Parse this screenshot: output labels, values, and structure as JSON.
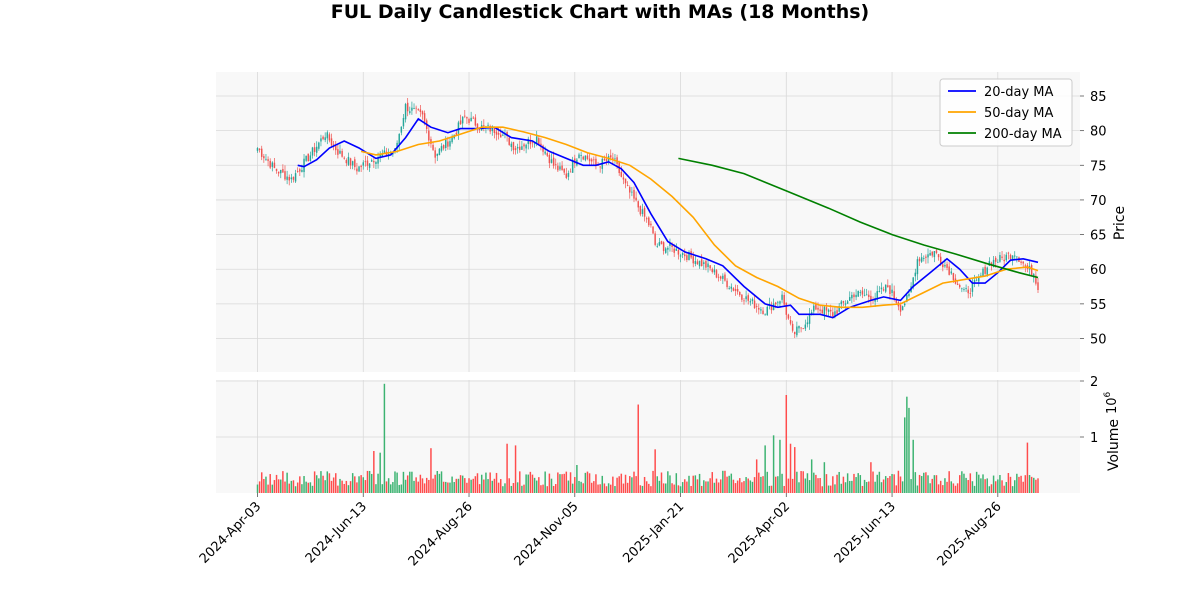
{
  "chart_data": {
    "type": "candlestick",
    "title": "FUL Daily Candlestick Chart with MAs (18 Months)",
    "price_panel": {
      "ylabel": "Price",
      "ylim": [
        46,
        88
      ],
      "yticks": [
        50,
        55,
        60,
        65,
        70,
        75,
        80,
        85
      ],
      "grid": true,
      "legend_position": "top-right"
    },
    "volume_panel": {
      "ylabel": "Volume",
      "scale_note": "10^6",
      "ylim": [
        0,
        2.0
      ],
      "yticks": [
        1,
        2
      ]
    },
    "x_axis": {
      "ticks": [
        "2024-Apr-03",
        "2024-Jun-13",
        "2024-Aug-26",
        "2024-Nov-05",
        "2025-Jan-21",
        "2025-Apr-02",
        "2025-Jun-13",
        "2025-Aug-26"
      ],
      "tick_index": [
        0,
        50,
        100,
        150,
        200,
        250,
        300,
        350
      ],
      "last_index": 369
    },
    "close_anchors": [
      {
        "i": 0,
        "v": 77.5
      },
      {
        "i": 8,
        "v": 74.5
      },
      {
        "i": 16,
        "v": 73.0
      },
      {
        "i": 25,
        "v": 76.5
      },
      {
        "i": 32,
        "v": 79.5
      },
      {
        "i": 38,
        "v": 77.0
      },
      {
        "i": 47,
        "v": 74.5
      },
      {
        "i": 55,
        "v": 76.0
      },
      {
        "i": 65,
        "v": 77.0
      },
      {
        "i": 70,
        "v": 83.5
      },
      {
        "i": 78,
        "v": 82.0
      },
      {
        "i": 84,
        "v": 76.5
      },
      {
        "i": 92,
        "v": 79.0
      },
      {
        "i": 98,
        "v": 82.0
      },
      {
        "i": 106,
        "v": 80.5
      },
      {
        "i": 114,
        "v": 80.0
      },
      {
        "i": 122,
        "v": 77.5
      },
      {
        "i": 132,
        "v": 79.0
      },
      {
        "i": 140,
        "v": 75.0
      },
      {
        "i": 146,
        "v": 73.5
      },
      {
        "i": 152,
        "v": 77.0
      },
      {
        "i": 160,
        "v": 75.0
      },
      {
        "i": 168,
        "v": 76.0
      },
      {
        "i": 174,
        "v": 72.0
      },
      {
        "i": 180,
        "v": 69.0
      },
      {
        "i": 186,
        "v": 66.0
      },
      {
        "i": 188,
        "v": 63.5
      },
      {
        "i": 196,
        "v": 63.0
      },
      {
        "i": 203,
        "v": 62.0
      },
      {
        "i": 212,
        "v": 60.5
      },
      {
        "i": 222,
        "v": 58.0
      },
      {
        "i": 232,
        "v": 55.5
      },
      {
        "i": 240,
        "v": 54.0
      },
      {
        "i": 248,
        "v": 56.0
      },
      {
        "i": 253,
        "v": 50.5
      },
      {
        "i": 258,
        "v": 52.0
      },
      {
        "i": 264,
        "v": 54.5
      },
      {
        "i": 272,
        "v": 53.5
      },
      {
        "i": 282,
        "v": 56.5
      },
      {
        "i": 292,
        "v": 56.0
      },
      {
        "i": 298,
        "v": 57.5
      },
      {
        "i": 304,
        "v": 54.5
      },
      {
        "i": 308,
        "v": 56.0
      },
      {
        "i": 312,
        "v": 61.5
      },
      {
        "i": 320,
        "v": 62.5
      },
      {
        "i": 328,
        "v": 59.5
      },
      {
        "i": 334,
        "v": 56.5
      },
      {
        "i": 340,
        "v": 58.0
      },
      {
        "i": 346,
        "v": 61.0
      },
      {
        "i": 352,
        "v": 61.5
      },
      {
        "i": 358,
        "v": 62.5
      },
      {
        "i": 364,
        "v": 60.0
      },
      {
        "i": 367,
        "v": 59.5
      },
      {
        "i": 369,
        "v": 57.5
      }
    ],
    "series": [
      {
        "name": "20-day MA",
        "color": "#0000ff",
        "values": [
          {
            "i": 19,
            "v": 75.0
          },
          {
            "i": 22,
            "v": 74.8
          },
          {
            "i": 28,
            "v": 75.8
          },
          {
            "i": 34,
            "v": 77.5
          },
          {
            "i": 41,
            "v": 78.5
          },
          {
            "i": 48,
            "v": 77.5
          },
          {
            "i": 56,
            "v": 76.0
          },
          {
            "i": 63,
            "v": 76.5
          },
          {
            "i": 70,
            "v": 79.0
          },
          {
            "i": 76,
            "v": 81.7
          },
          {
            "i": 82,
            "v": 80.5
          },
          {
            "i": 90,
            "v": 79.7
          },
          {
            "i": 96,
            "v": 80.3
          },
          {
            "i": 104,
            "v": 80.3
          },
          {
            "i": 112,
            "v": 80.5
          },
          {
            "i": 120,
            "v": 79.0
          },
          {
            "i": 130,
            "v": 78.5
          },
          {
            "i": 138,
            "v": 77.0
          },
          {
            "i": 146,
            "v": 76.0
          },
          {
            "i": 154,
            "v": 75.0
          },
          {
            "i": 160,
            "v": 75.0
          },
          {
            "i": 166,
            "v": 75.5
          },
          {
            "i": 172,
            "v": 74.5
          },
          {
            "i": 178,
            "v": 72.5
          },
          {
            "i": 186,
            "v": 68.0
          },
          {
            "i": 194,
            "v": 64.0
          },
          {
            "i": 202,
            "v": 62.5
          },
          {
            "i": 212,
            "v": 61.5
          },
          {
            "i": 220,
            "v": 60.5
          },
          {
            "i": 230,
            "v": 57.5
          },
          {
            "i": 240,
            "v": 55.0
          },
          {
            "i": 246,
            "v": 54.5
          },
          {
            "i": 252,
            "v": 54.8
          },
          {
            "i": 256,
            "v": 53.5
          },
          {
            "i": 266,
            "v": 53.5
          },
          {
            "i": 272,
            "v": 53.0
          },
          {
            "i": 280,
            "v": 54.5
          },
          {
            "i": 290,
            "v": 55.5
          },
          {
            "i": 296,
            "v": 56.0
          },
          {
            "i": 304,
            "v": 55.5
          },
          {
            "i": 310,
            "v": 57.5
          },
          {
            "i": 318,
            "v": 59.5
          },
          {
            "i": 326,
            "v": 61.5
          },
          {
            "i": 332,
            "v": 60.0
          },
          {
            "i": 338,
            "v": 58.0
          },
          {
            "i": 344,
            "v": 58.0
          },
          {
            "i": 350,
            "v": 59.5
          },
          {
            "i": 356,
            "v": 61.3
          },
          {
            "i": 362,
            "v": 61.5
          },
          {
            "i": 369,
            "v": 61.0
          }
        ]
      },
      {
        "name": "50-day MA",
        "color": "#ffa500",
        "values": [
          {
            "i": 49,
            "v": 77.0
          },
          {
            "i": 56,
            "v": 76.5
          },
          {
            "i": 66,
            "v": 77.0
          },
          {
            "i": 76,
            "v": 78.0
          },
          {
            "i": 86,
            "v": 78.5
          },
          {
            "i": 96,
            "v": 79.5
          },
          {
            "i": 106,
            "v": 80.5
          },
          {
            "i": 116,
            "v": 80.5
          },
          {
            "i": 126,
            "v": 79.8
          },
          {
            "i": 136,
            "v": 79.0
          },
          {
            "i": 146,
            "v": 78.0
          },
          {
            "i": 156,
            "v": 76.8
          },
          {
            "i": 166,
            "v": 76.0
          },
          {
            "i": 176,
            "v": 75.0
          },
          {
            "i": 186,
            "v": 73.0
          },
          {
            "i": 196,
            "v": 70.5
          },
          {
            "i": 206,
            "v": 67.5
          },
          {
            "i": 216,
            "v": 63.5
          },
          {
            "i": 226,
            "v": 60.5
          },
          {
            "i": 236,
            "v": 58.8
          },
          {
            "i": 246,
            "v": 57.5
          },
          {
            "i": 256,
            "v": 55.8
          },
          {
            "i": 266,
            "v": 54.8
          },
          {
            "i": 276,
            "v": 54.5
          },
          {
            "i": 286,
            "v": 54.5
          },
          {
            "i": 296,
            "v": 54.8
          },
          {
            "i": 304,
            "v": 55.0
          },
          {
            "i": 314,
            "v": 56.5
          },
          {
            "i": 324,
            "v": 58.0
          },
          {
            "i": 334,
            "v": 58.5
          },
          {
            "i": 344,
            "v": 59.0
          },
          {
            "i": 354,
            "v": 60.0
          },
          {
            "i": 364,
            "v": 60.3
          },
          {
            "i": 369,
            "v": 59.8
          }
        ]
      },
      {
        "name": "200-day MA",
        "color": "#008000",
        "values": [
          {
            "i": 199,
            "v": 76.0
          },
          {
            "i": 215,
            "v": 75.0
          },
          {
            "i": 230,
            "v": 73.8
          },
          {
            "i": 250,
            "v": 71.3
          },
          {
            "i": 270,
            "v": 68.8
          },
          {
            "i": 285,
            "v": 66.8
          },
          {
            "i": 300,
            "v": 65.0
          },
          {
            "i": 315,
            "v": 63.5
          },
          {
            "i": 330,
            "v": 62.2
          },
          {
            "i": 345,
            "v": 60.8
          },
          {
            "i": 360,
            "v": 59.5
          },
          {
            "i": 369,
            "v": 58.8
          }
        ]
      }
    ],
    "volume_spikes": [
      {
        "i": 60,
        "v": 1.95
      },
      {
        "i": 55,
        "v": 0.75
      },
      {
        "i": 58,
        "v": 0.72
      },
      {
        "i": 82,
        "v": 0.8
      },
      {
        "i": 118,
        "v": 0.88
      },
      {
        "i": 122,
        "v": 0.85
      },
      {
        "i": 151,
        "v": 0.5
      },
      {
        "i": 180,
        "v": 1.58
      },
      {
        "i": 188,
        "v": 0.78
      },
      {
        "i": 236,
        "v": 0.6
      },
      {
        "i": 240,
        "v": 0.85
      },
      {
        "i": 244,
        "v": 1.03
      },
      {
        "i": 247,
        "v": 0.95
      },
      {
        "i": 250,
        "v": 1.75
      },
      {
        "i": 252,
        "v": 0.88
      },
      {
        "i": 254,
        "v": 0.82
      },
      {
        "i": 262,
        "v": 0.6
      },
      {
        "i": 268,
        "v": 0.55
      },
      {
        "i": 290,
        "v": 0.55
      },
      {
        "i": 306,
        "v": 1.35
      },
      {
        "i": 307,
        "v": 1.72
      },
      {
        "i": 308,
        "v": 1.52
      },
      {
        "i": 310,
        "v": 0.95
      },
      {
        "i": 364,
        "v": 0.9
      }
    ]
  }
}
